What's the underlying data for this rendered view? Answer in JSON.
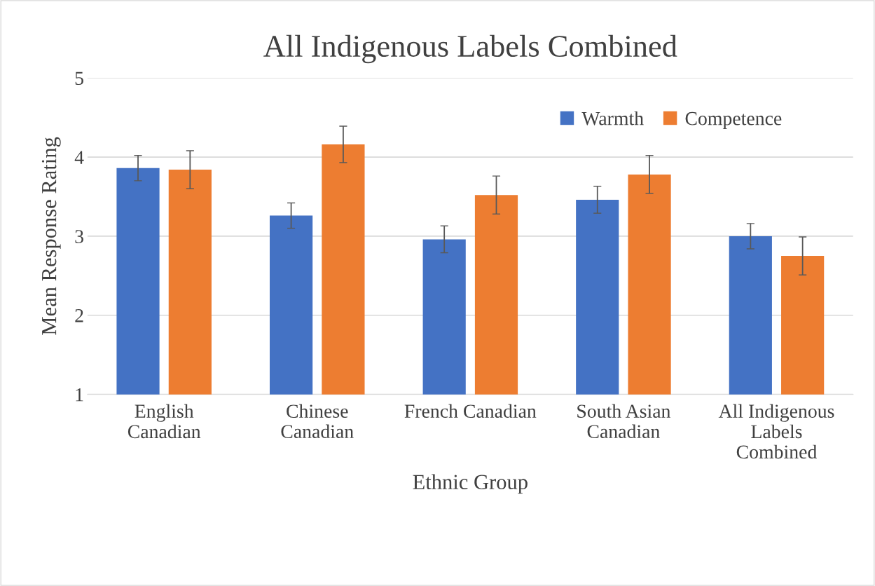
{
  "chart_data": {
    "type": "bar",
    "title": "All Indigenous Labels Combined",
    "xlabel": "Ethnic Group",
    "ylabel": "Mean Response Rating",
    "categories": [
      "English\nCanadian",
      "Chinese\nCanadian",
      "French Canadian",
      "South Asian\nCanadian",
      "All Indigenous\nLabels\nCombined"
    ],
    "series": [
      {
        "name": "Warmth",
        "color": "#4472c4",
        "values": [
          3.86,
          3.26,
          2.96,
          3.46,
          3.0
        ],
        "errors": [
          0.16,
          0.16,
          0.17,
          0.17,
          0.16
        ]
      },
      {
        "name": "Competence",
        "color": "#ed7d31",
        "values": [
          3.84,
          4.16,
          3.52,
          3.78,
          2.75
        ],
        "errors": [
          0.24,
          0.23,
          0.24,
          0.24,
          0.24
        ]
      }
    ],
    "ylim": [
      1,
      5
    ],
    "yticks": [
      1,
      2,
      3,
      4,
      5
    ],
    "grid": "y",
    "legend": "top right"
  }
}
